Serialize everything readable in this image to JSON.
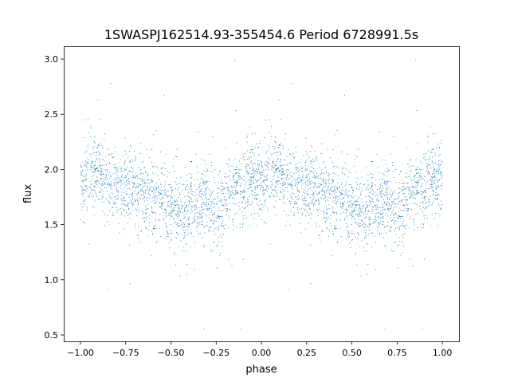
{
  "chart_data": {
    "type": "scatter",
    "title": "1SWASPJ162514.93-355454.6 Period 6728991.5s",
    "xlabel": "phase",
    "ylabel": "flux",
    "xlim": [
      -1.0925,
      1.092
    ],
    "ylim": [
      0.442,
      3.116
    ],
    "xticks": [
      -1.0,
      -0.75,
      -0.5,
      -0.25,
      0.0,
      0.25,
      0.5,
      0.75,
      1.0
    ],
    "xtick_labels": [
      "−1.00",
      "−0.75",
      "−0.50",
      "−0.25",
      "0.00",
      "0.25",
      "0.50",
      "0.75",
      "1.00"
    ],
    "yticks": [
      0.5,
      1.0,
      1.5,
      2.0,
      2.5,
      3.0
    ],
    "ytick_labels": [
      "0.5",
      "1.0",
      "1.5",
      "2.0",
      "2.5",
      "3.0"
    ],
    "grid": false,
    "marker_color": "#1f77b4",
    "phase_folded_trend": {
      "phase": [
        0.0,
        0.05,
        0.1,
        0.15,
        0.2,
        0.25,
        0.3,
        0.35,
        0.4,
        0.45,
        0.5,
        0.55,
        0.6,
        0.65,
        0.7,
        0.75,
        0.8,
        0.85,
        0.9,
        0.95,
        1.0
      ],
      "mean_flux": [
        1.85,
        1.95,
        1.95,
        1.9,
        1.85,
        1.82,
        1.8,
        1.76,
        1.75,
        1.72,
        1.7,
        1.6,
        1.63,
        1.68,
        1.7,
        1.62,
        1.75,
        1.82,
        1.85,
        1.9,
        1.85
      ],
      "scatter_sd": 0.17,
      "flux_range": [
        0.55,
        3.0
      ]
    },
    "n_points_per_cycle": 1800
  }
}
